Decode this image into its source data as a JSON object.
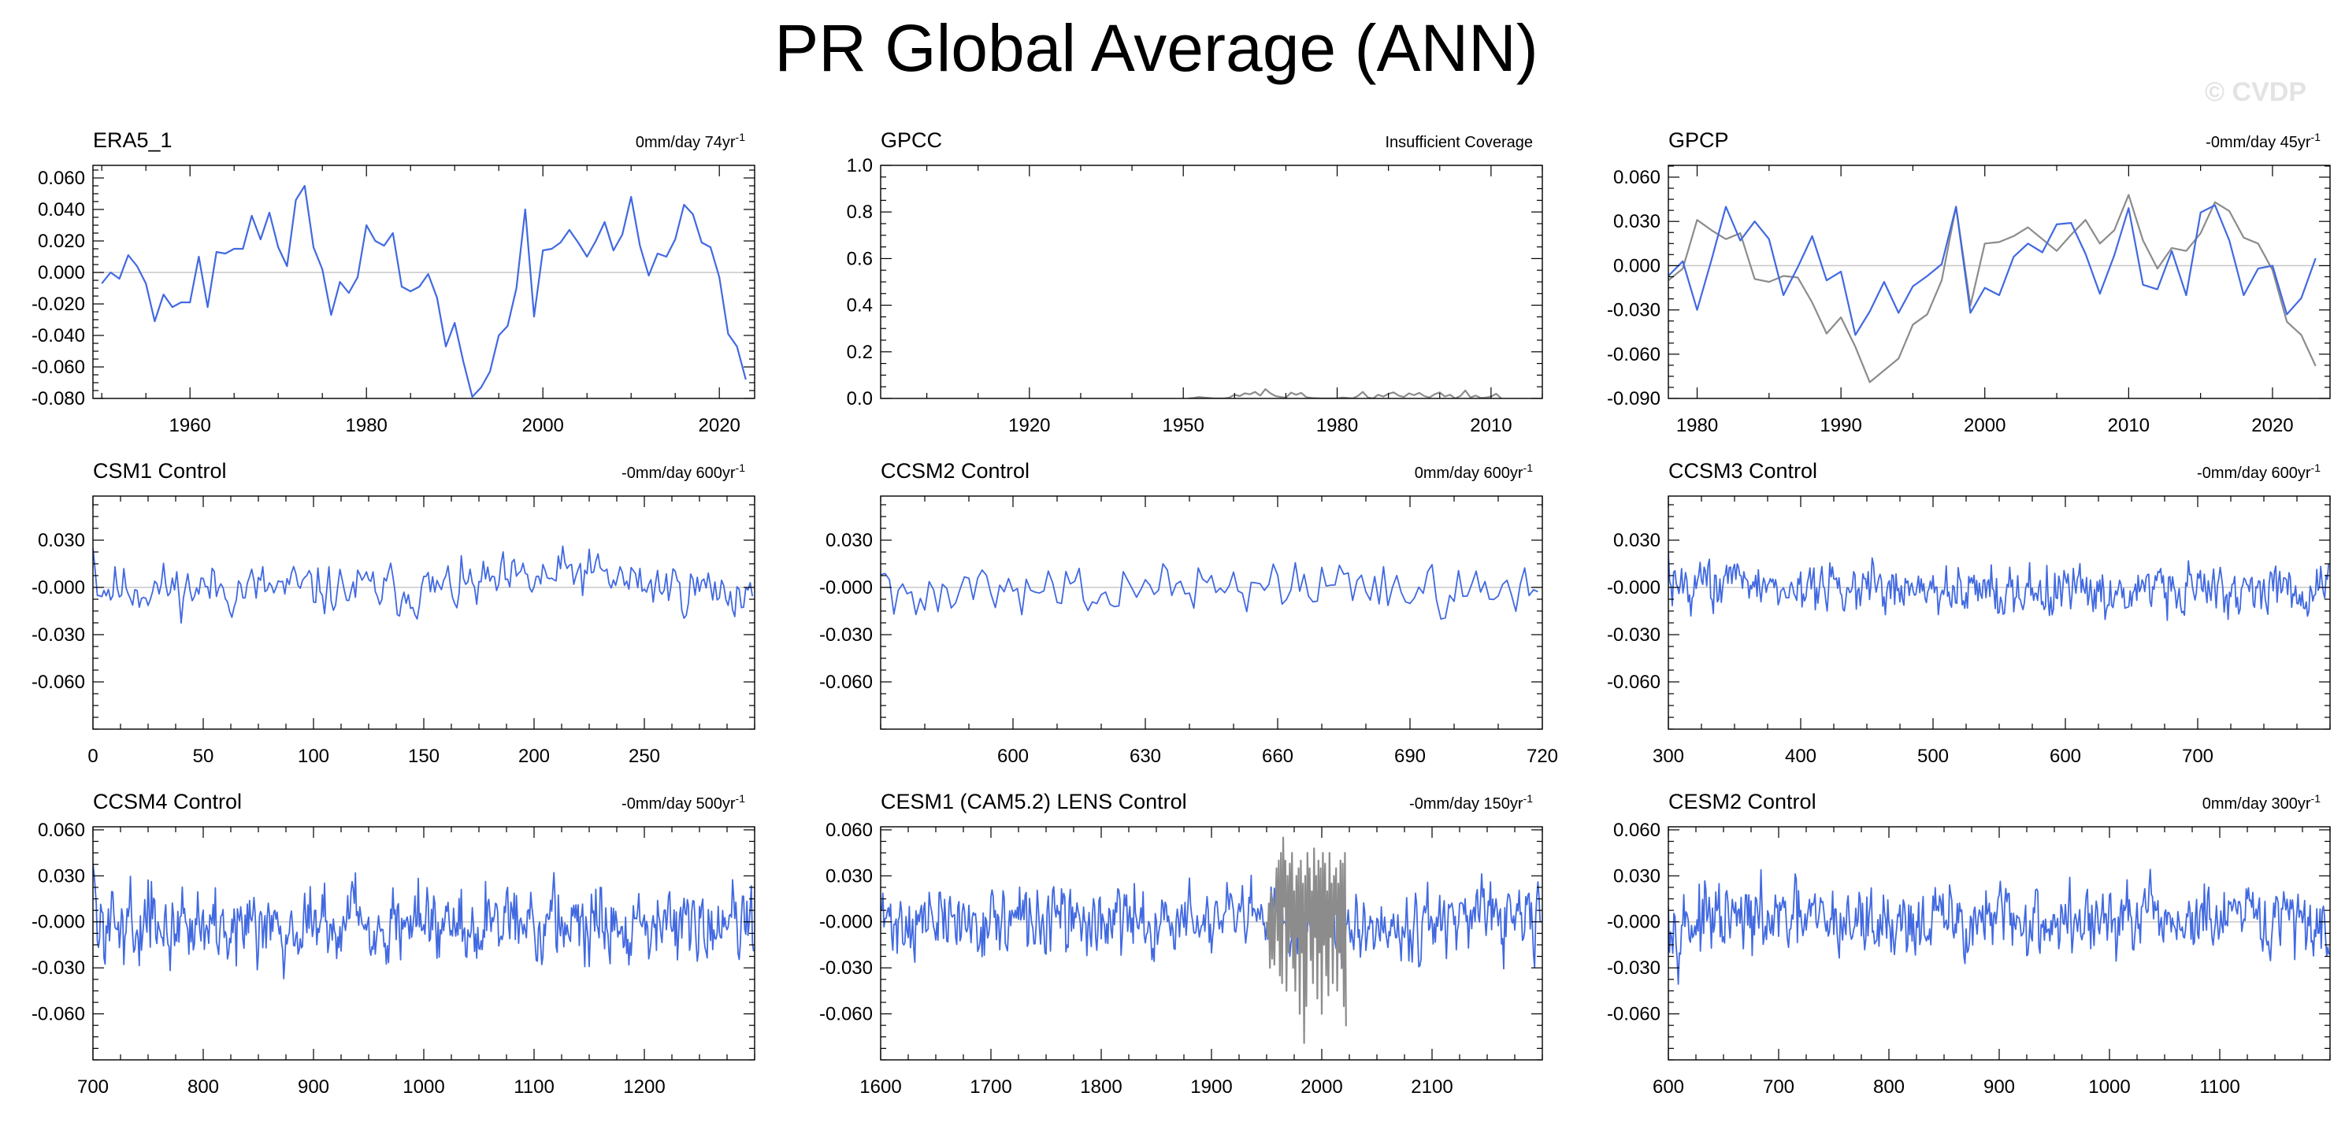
{
  "title": "PR Global Average (ANN)",
  "watermark": "© CVDP",
  "colors": {
    "primary": "#4169e1",
    "secondary": "#8c8c8c",
    "zero_line": "#c8c8c8"
  },
  "chart_data": [
    {
      "type": "line",
      "title": "ERA5_1",
      "right_label": "0mm/day 74yr",
      "right_label_exp": "-1",
      "xlim": [
        1949,
        2024
      ],
      "ylim": [
        -0.08,
        0.068
      ],
      "xticks": [
        1960,
        1980,
        2000,
        2020
      ],
      "xtick_labels": [
        "1960",
        "1980",
        "2000",
        "2020"
      ],
      "yticks": [
        -0.08,
        -0.06,
        -0.04,
        -0.02,
        0,
        0.02,
        0.04,
        0.06
      ],
      "ytick_labels": [
        "-0.080",
        "-0.060",
        "-0.040",
        "-0.020",
        "0.000",
        "0.020",
        "0.040",
        "0.060"
      ],
      "zero_line": true,
      "grid": false,
      "series": [
        {
          "color": "primary",
          "x_start": 1950,
          "step": 1,
          "values": [
            -0.007,
            0.0,
            -0.004,
            0.011,
            0.004,
            -0.007,
            -0.031,
            -0.014,
            -0.022,
            -0.019,
            -0.019,
            0.01,
            -0.022,
            0.013,
            0.012,
            0.015,
            0.015,
            0.036,
            0.021,
            0.038,
            0.016,
            0.004,
            0.046,
            0.055,
            0.016,
            0.002,
            -0.027,
            -0.006,
            -0.013,
            -0.003,
            0.03,
            0.02,
            0.017,
            0.025,
            -0.009,
            -0.012,
            -0.009,
            -0.001,
            -0.016,
            -0.047,
            -0.032,
            -0.057,
            -0.079,
            -0.073,
            -0.063,
            -0.04,
            -0.034,
            -0.01,
            0.04,
            -0.028,
            0.014,
            0.015,
            0.019,
            0.027,
            0.019,
            0.01,
            0.02,
            0.032,
            0.014,
            0.024,
            0.048,
            0.017,
            -0.002,
            0.012,
            0.01,
            0.021,
            0.043,
            0.037,
            0.019,
            0.016,
            -0.003,
            -0.039,
            -0.047,
            -0.068
          ]
        }
      ]
    },
    {
      "type": "line",
      "title": "GPCC",
      "right_label": "Insufficient Coverage",
      "right_label_exp": "",
      "xlim": [
        1891,
        2020
      ],
      "ylim": [
        0,
        1
      ],
      "xticks": [
        1920,
        1950,
        1980,
        2010
      ],
      "xtick_labels": [
        "1920",
        "1950",
        "1980",
        "2010"
      ],
      "yticks": [
        0,
        0.2,
        0.4,
        0.6,
        0.8,
        1.0
      ],
      "ytick_labels": [
        "0.0",
        "0.2",
        "0.4",
        "0.6",
        "0.8",
        "1.0"
      ],
      "zero_line": false,
      "grid": false,
      "series": [
        {
          "color": "secondary",
          "x_start": 1951,
          "step": 1,
          "values": [
            0.0,
            0.002,
            0.006,
            0.004,
            0.002,
            0.0,
            0.0,
            0.0,
            0.004,
            0.016,
            0.01,
            0.022,
            0.018,
            0.028,
            0.012,
            0.04,
            0.022,
            0.01,
            0.006,
            0.003,
            0.025,
            0.016,
            0.024,
            0.005,
            0.002,
            0.001,
            0.0,
            0.0,
            0.0,
            0.0,
            0.004,
            0.002,
            0.0,
            0.01,
            0.028,
            0.004,
            0.0,
            0.016,
            0.008,
            0.02,
            0.026,
            0.012,
            0.006,
            0.022,
            0.014,
            0.024,
            0.01,
            0.004,
            0.018,
            0.026,
            0.008,
            0.016,
            0.0,
            0.01,
            0.034,
            0.004,
            0.012,
            0.002,
            0.004,
            0.008,
            0.02,
            0.0
          ]
        }
      ]
    },
    {
      "type": "line",
      "title": "GPCP",
      "right_label": "-0mm/day 45yr",
      "right_label_exp": "-1",
      "xlim": [
        1978,
        2024
      ],
      "ylim": [
        -0.09,
        0.068
      ],
      "xticks": [
        1980,
        1990,
        2000,
        2010,
        2020
      ],
      "xtick_labels": [
        "1980",
        "1990",
        "2000",
        "2010",
        "2020"
      ],
      "yticks": [
        -0.09,
        -0.06,
        -0.03,
        0,
        0.03,
        0.06
      ],
      "ytick_labels": [
        "-0.090",
        "-0.060",
        "-0.030",
        "0.000",
        "0.030",
        "0.060"
      ],
      "zero_line": true,
      "grid": false,
      "series": [
        {
          "color": "secondary",
          "x_start": 1978,
          "step": 1,
          "values": [
            -0.01,
            -0.002,
            0.031,
            0.024,
            0.018,
            0.022,
            -0.009,
            -0.011,
            -0.007,
            -0.008,
            -0.025,
            -0.046,
            -0.035,
            -0.055,
            -0.079,
            -0.071,
            -0.063,
            -0.04,
            -0.033,
            -0.01,
            0.04,
            -0.027,
            0.015,
            0.016,
            0.02,
            0.026,
            0.018,
            0.01,
            0.021,
            0.031,
            0.015,
            0.024,
            0.048,
            0.017,
            -0.002,
            0.012,
            0.01,
            0.022,
            0.043,
            0.037,
            0.019,
            0.015,
            -0.003,
            -0.038,
            -0.047,
            -0.068
          ]
        },
        {
          "color": "primary",
          "x_start": 1978,
          "step": 1,
          "values": [
            -0.007,
            0.003,
            -0.03,
            0.004,
            0.04,
            0.017,
            0.03,
            0.018,
            -0.02,
            -0.001,
            0.02,
            -0.01,
            -0.004,
            -0.047,
            -0.031,
            -0.011,
            -0.032,
            -0.014,
            -0.007,
            0.001,
            0.04,
            -0.032,
            -0.015,
            -0.02,
            0.006,
            0.015,
            0.009,
            0.028,
            0.029,
            0.008,
            -0.019,
            0.007,
            0.039,
            -0.013,
            -0.016,
            0.01,
            -0.02,
            0.036,
            0.041,
            0.017,
            -0.02,
            -0.002,
            0.0,
            -0.033,
            -0.022,
            0.005
          ]
        }
      ]
    },
    {
      "type": "line",
      "title": "CSM1 Control",
      "right_label": "-0mm/day 600yr",
      "right_label_exp": "-1",
      "xlim": [
        0,
        300
      ],
      "ylim": [
        -0.09,
        0.058
      ],
      "xticks": [
        0,
        50,
        100,
        150,
        200,
        250
      ],
      "xtick_labels": [
        "0",
        "50",
        "100",
        "150",
        "200",
        "250"
      ],
      "yticks": [
        -0.06,
        -0.03,
        0,
        0.03
      ],
      "ytick_labels": [
        "-0.060",
        "-0.030",
        "-0.000",
        "0.030"
      ],
      "zero_line": true,
      "grid": false,
      "series": [
        {
          "color": "primary",
          "noise": {
            "n": 300,
            "x_start": 0,
            "step": 1,
            "amp": 0.0075,
            "seed": 11,
            "drift": [
              [
                0,
                0.0
              ],
              [
                150,
                -0.002
              ],
              [
                200,
                0.004
              ],
              [
                220,
                0.01
              ],
              [
                250,
                0.002
              ],
              [
                300,
                -0.004
              ]
            ],
            "first": 0.025
          }
        }
      ]
    },
    {
      "type": "line",
      "title": "CCSM2 Control",
      "right_label": "0mm/day 600yr",
      "right_label_exp": "-1",
      "xlim": [
        570,
        720
      ],
      "ylim": [
        -0.09,
        0.058
      ],
      "xticks": [
        600,
        630,
        660,
        690,
        720
      ],
      "xtick_labels": [
        "600",
        "630",
        "660",
        "690",
        "720"
      ],
      "yticks": [
        -0.06,
        -0.03,
        0,
        0.03
      ],
      "ytick_labels": [
        "-0.060",
        "-0.030",
        "-0.000",
        "0.030"
      ],
      "zero_line": true,
      "grid": false,
      "series": [
        {
          "color": "primary",
          "noise": {
            "n": 150,
            "x_start": 570,
            "step": 1,
            "amp": 0.0085,
            "seed": 27,
            "drift": [
              [
                570,
                0.0
              ],
              [
                720,
                0.0
              ]
            ],
            "first": 0.008
          }
        }
      ]
    },
    {
      "type": "line",
      "title": "CCSM3 Control",
      "right_label": "-0mm/day 600yr",
      "right_label_exp": "-1",
      "xlim": [
        300,
        800
      ],
      "ylim": [
        -0.09,
        0.058
      ],
      "xticks": [
        300,
        400,
        500,
        600,
        700
      ],
      "xtick_labels": [
        "300",
        "400",
        "500",
        "600",
        "700"
      ],
      "yticks": [
        -0.06,
        -0.03,
        0,
        0.03
      ],
      "ytick_labels": [
        "-0.060",
        "-0.030",
        "-0.000",
        "0.030"
      ],
      "zero_line": true,
      "grid": false,
      "series": [
        {
          "color": "primary",
          "noise": {
            "n": 500,
            "x_start": 300,
            "step": 1,
            "amp": 0.0075,
            "seed": 43,
            "drift": [
              [
                300,
                0.004
              ],
              [
                450,
                -0.002
              ],
              [
                800,
                -0.001
              ]
            ],
            "first": 0.022
          }
        }
      ]
    },
    {
      "type": "line",
      "title": "CCSM4 Control",
      "right_label": "-0mm/day 500yr",
      "right_label_exp": "-1",
      "xlim": [
        700,
        1300
      ],
      "ylim": [
        -0.09,
        0.062
      ],
      "xticks": [
        700,
        800,
        900,
        1000,
        1100,
        1200
      ],
      "xtick_labels": [
        "700",
        "800",
        "900",
        "1000",
        "1100",
        "1200"
      ],
      "yticks": [
        -0.06,
        -0.03,
        0,
        0.03,
        0.06
      ],
      "ytick_labels": [
        "-0.060",
        "-0.030",
        "-0.000",
        "0.030",
        "0.060"
      ],
      "zero_line": true,
      "grid": false,
      "series": [
        {
          "color": "primary",
          "noise": {
            "n": 600,
            "x_start": 700,
            "step": 1,
            "amp": 0.0115,
            "seed": 59,
            "drift": [
              [
                700,
                0.0
              ],
              [
                1300,
                0.0
              ]
            ],
            "first": 0.038
          }
        }
      ]
    },
    {
      "type": "line",
      "title": "CESM1 (CAM5.2) LENS Control",
      "right_label": "-0mm/day 150yr",
      "right_label_exp": "-1",
      "xlim": [
        1600,
        2200
      ],
      "ylim": [
        -0.09,
        0.062
      ],
      "xticks": [
        1600,
        1700,
        1800,
        1900,
        2000,
        2100
      ],
      "xtick_labels": [
        "1600",
        "1700",
        "1800",
        "1900",
        "2000",
        "2100"
      ],
      "yticks": [
        -0.06,
        -0.03,
        0,
        0.03,
        0.06
      ],
      "ytick_labels": [
        "-0.060",
        "-0.030",
        "-0.000",
        "0.030",
        "0.060"
      ],
      "zero_line": true,
      "grid": false,
      "series": [
        {
          "color": "primary",
          "noise": {
            "n": 600,
            "x_start": 1600,
            "step": 1,
            "amp": 0.0105,
            "seed": 71,
            "drift": [
              [
                1600,
                0.0
              ],
              [
                2200,
                0.0
              ]
            ],
            "first": 0.01
          }
        },
        {
          "color": "secondary",
          "x_start": 1950,
          "step": 1,
          "values": [
            0.0,
            -0.01,
            0.012,
            -0.03,
            0.02,
            -0.024,
            0.015,
            -0.028,
            0.008,
            0.035,
            -0.012,
            0.04,
            -0.035,
            0.045,
            -0.04,
            0.055,
            0.01,
            0.04,
            -0.045,
            0.03,
            -0.02,
            0.038,
            -0.01,
            0.045,
            -0.03,
            0.02,
            -0.045,
            0.03,
            -0.01,
            0.035,
            -0.06,
            0.04,
            -0.02,
            0.025,
            -0.079,
            0.03,
            -0.055,
            0.045,
            0.0,
            0.035,
            -0.025,
            0.02,
            -0.04,
            0.048,
            -0.01,
            0.03,
            -0.05,
            0.04,
            -0.02,
            0.035,
            -0.06,
            0.045,
            -0.015,
            0.038,
            -0.035,
            0.02,
            -0.048,
            0.045,
            -0.01,
            0.025,
            -0.04,
            0.03,
            0.005,
            0.035,
            -0.045,
            0.025,
            -0.02,
            0.04,
            -0.03,
            0.038,
            -0.055,
            0.045,
            -0.068
          ]
        }
      ]
    },
    {
      "type": "line",
      "title": "CESM2 Control",
      "right_label": "0mm/day 300yr",
      "right_label_exp": "-1",
      "xlim": [
        600,
        1200
      ],
      "ylim": [
        -0.09,
        0.062
      ],
      "xticks": [
        600,
        700,
        800,
        900,
        1000,
        1100
      ],
      "xtick_labels": [
        "600",
        "700",
        "800",
        "900",
        "1000",
        "1100"
      ],
      "yticks": [
        -0.06,
        -0.03,
        0,
        0.03,
        0.06
      ],
      "ytick_labels": [
        "-0.060",
        "-0.030",
        "-0.000",
        "0.030",
        "0.060"
      ],
      "zero_line": true,
      "grid": false,
      "series": [
        {
          "color": "primary",
          "noise": {
            "n": 600,
            "x_start": 600,
            "step": 1,
            "amp": 0.011,
            "seed": 97,
            "drift": [
              [
                600,
                0.0
              ],
              [
                1200,
                0.0
              ]
            ],
            "first": 0.01
          }
        }
      ]
    }
  ]
}
